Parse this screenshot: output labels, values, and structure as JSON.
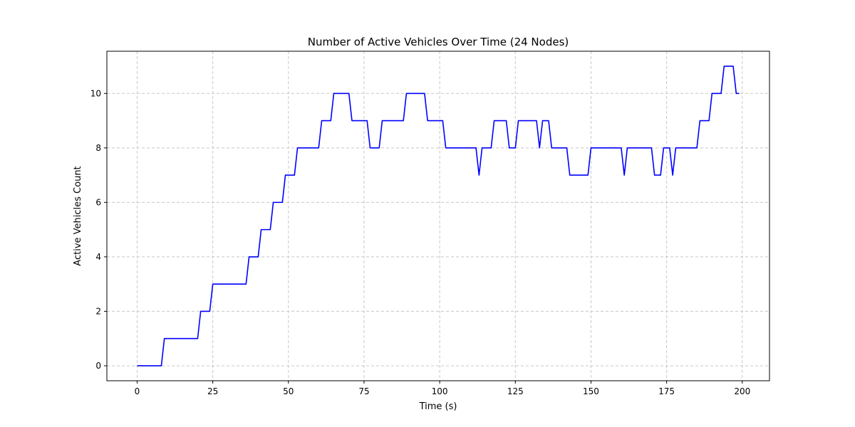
{
  "chart_data": {
    "type": "line",
    "title": "Number of Active Vehicles Over Time (24 Nodes)",
    "xlabel": "Time (s)",
    "ylabel": "Active Vehicles Count",
    "xlim": [
      -10,
      209
    ],
    "ylim": [
      -0.55,
      11.55
    ],
    "x_ticks": [
      0,
      25,
      50,
      75,
      100,
      125,
      150,
      175,
      200
    ],
    "y_ticks": [
      0,
      2,
      4,
      6,
      8,
      10
    ],
    "grid": true,
    "colors": {
      "line": "#0000ff",
      "grid": "#c8c8c8",
      "axes": "#000000"
    },
    "series": [
      {
        "points": [
          [
            0,
            0
          ],
          [
            8,
            0
          ],
          [
            9,
            1
          ],
          [
            20,
            1
          ],
          [
            21,
            2
          ],
          [
            24,
            2
          ],
          [
            25,
            3
          ],
          [
            36,
            3
          ],
          [
            37,
            4
          ],
          [
            40,
            4
          ],
          [
            41,
            5
          ],
          [
            44,
            5
          ],
          [
            45,
            6
          ],
          [
            48,
            6
          ],
          [
            49,
            7
          ],
          [
            52,
            7
          ],
          [
            53,
            8
          ],
          [
            60,
            8
          ],
          [
            61,
            9
          ],
          [
            64,
            9
          ],
          [
            65,
            10
          ],
          [
            70,
            10
          ],
          [
            71,
            9
          ],
          [
            76,
            9
          ],
          [
            77,
            8
          ],
          [
            80,
            8
          ],
          [
            81,
            9
          ],
          [
            88,
            9
          ],
          [
            89,
            10
          ],
          [
            95,
            10
          ],
          [
            96,
            9
          ],
          [
            101,
            9
          ],
          [
            102,
            8
          ],
          [
            112,
            8
          ],
          [
            113,
            7
          ],
          [
            114,
            8
          ],
          [
            117,
            8
          ],
          [
            118,
            9
          ],
          [
            122,
            9
          ],
          [
            123,
            8
          ],
          [
            125,
            8
          ],
          [
            126,
            9
          ],
          [
            132,
            9
          ],
          [
            133,
            8
          ],
          [
            134,
            9
          ],
          [
            136,
            9
          ],
          [
            137,
            8
          ],
          [
            142,
            8
          ],
          [
            143,
            7
          ],
          [
            149,
            7
          ],
          [
            150,
            8
          ],
          [
            160,
            8
          ],
          [
            161,
            7
          ],
          [
            162,
            8
          ],
          [
            170,
            8
          ],
          [
            171,
            7
          ],
          [
            173,
            7
          ],
          [
            174,
            8
          ],
          [
            176,
            8
          ],
          [
            177,
            7
          ],
          [
            178,
            8
          ],
          [
            185,
            8
          ],
          [
            186,
            9
          ],
          [
            189,
            9
          ],
          [
            190,
            10
          ],
          [
            193,
            10
          ],
          [
            194,
            11
          ],
          [
            197,
            11
          ],
          [
            198,
            10
          ],
          [
            199,
            10
          ]
        ]
      }
    ]
  }
}
